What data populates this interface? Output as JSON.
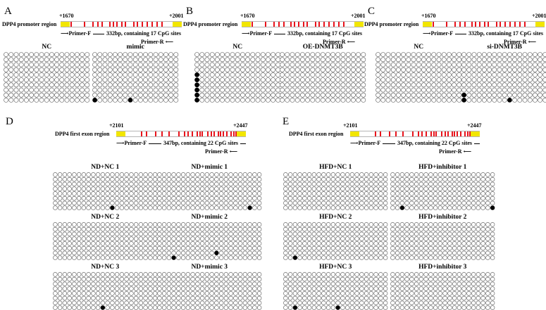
{
  "colors": {
    "cpg": "#e8131b",
    "primer_box": "#f2e600",
    "methylated": "#000000",
    "unmethylated": "#ffffff"
  },
  "panels": [
    {
      "letter": "A",
      "region_label": "DPP4 promoter region",
      "start_label": "+1670",
      "end_label": "+2001",
      "primer_f": "Primer-F",
      "primer_r": "Primer-R",
      "amplicon": "332bp,   containing 17 CpG sites",
      "groups": [
        {
          "title": "NC",
          "cols": 17,
          "rows": 10,
          "methylated": []
        },
        {
          "title": "mimic",
          "cols": 17,
          "rows": 10,
          "methylated": [
            [
              9,
              0
            ],
            [
              9,
              7
            ]
          ]
        }
      ]
    },
    {
      "letter": "B",
      "region_label": "DPP4 promoter region",
      "start_label": "+1670",
      "end_label": "+2001",
      "primer_f": "Primer-F",
      "primer_r": "Primer-R",
      "amplicon": "332bp,   containing 17 CpG sites",
      "groups": [
        {
          "title": "NC",
          "cols": 17,
          "rows": 10,
          "methylated": [
            [
              4,
              0
            ],
            [
              5,
              0
            ],
            [
              6,
              0
            ],
            [
              7,
              0
            ],
            [
              8,
              0
            ],
            [
              9,
              0
            ]
          ]
        },
        {
          "title": "OE-DNMT3B",
          "cols": 17,
          "rows": 10,
          "methylated": []
        }
      ]
    },
    {
      "letter": "C",
      "region_label": "DPP4 promoter region",
      "start_label": "+1670",
      "end_label": "+2001",
      "primer_f": "Primer-F",
      "primer_r": "Primer-R",
      "amplicon": "332bp,   containing 17 CpG sites",
      "groups": [
        {
          "title": "NC",
          "cols": 17,
          "rows": 10,
          "methylated": []
        },
        {
          "title": "si-DNMT3B",
          "cols": 17,
          "rows": 10,
          "methylated": [
            [
              8,
              0
            ],
            [
              9,
              0
            ],
            [
              9,
              9
            ]
          ]
        }
      ]
    },
    {
      "letter": "D",
      "region_label": "DPP4 first exon region",
      "start_label": "+2101",
      "end_label": "+2447",
      "primer_f": "Primer-F",
      "primer_r": "Primer-R",
      "amplicon": "347bp,    containing 22 CpG sites",
      "groups": [
        {
          "title": "ND+NC 1",
          "cols": 22,
          "rows": 8,
          "methylated": [
            [
              7,
              12
            ]
          ]
        },
        {
          "title": "ND+mimic 1",
          "cols": 22,
          "rows": 8,
          "methylated": [
            [
              7,
              19
            ]
          ]
        },
        {
          "title": "ND+NC 2",
          "cols": 22,
          "rows": 8,
          "methylated": []
        },
        {
          "title": "ND+mimic 2",
          "cols": 22,
          "rows": 8,
          "methylated": [
            [
              6,
              12
            ],
            [
              7,
              3
            ]
          ]
        },
        {
          "title": "ND+NC 3",
          "cols": 22,
          "rows": 8,
          "methylated": [
            [
              7,
              10
            ]
          ]
        },
        {
          "title": "ND+mimic 3",
          "cols": 22,
          "rows": 8,
          "methylated": []
        }
      ]
    },
    {
      "letter": "E",
      "region_label": "DPP4 first exon region",
      "start_label": "+2101",
      "end_label": "+2447",
      "primer_f": "Primer-F",
      "primer_r": "Primer-R",
      "amplicon": "347bp,    containing 22 CpG sites",
      "groups": [
        {
          "title": "HFD+NC 1",
          "cols": 22,
          "rows": 8,
          "methylated": []
        },
        {
          "title": "HFD+inhibitor 1",
          "cols": 22,
          "rows": 8,
          "methylated": [
            [
              7,
              2
            ],
            [
              7,
              21
            ]
          ]
        },
        {
          "title": "HFD+NC 2",
          "cols": 22,
          "rows": 8,
          "methylated": [
            [
              7,
              2
            ]
          ]
        },
        {
          "title": "HFD+inhibitor 2",
          "cols": 22,
          "rows": 8,
          "methylated": []
        },
        {
          "title": "HFD+NC 3",
          "cols": 22,
          "rows": 8,
          "methylated": [
            [
              7,
              2
            ],
            [
              7,
              11
            ]
          ]
        },
        {
          "title": "HFD+inhibitor 3",
          "cols": 22,
          "rows": 8,
          "methylated": []
        }
      ]
    }
  ]
}
